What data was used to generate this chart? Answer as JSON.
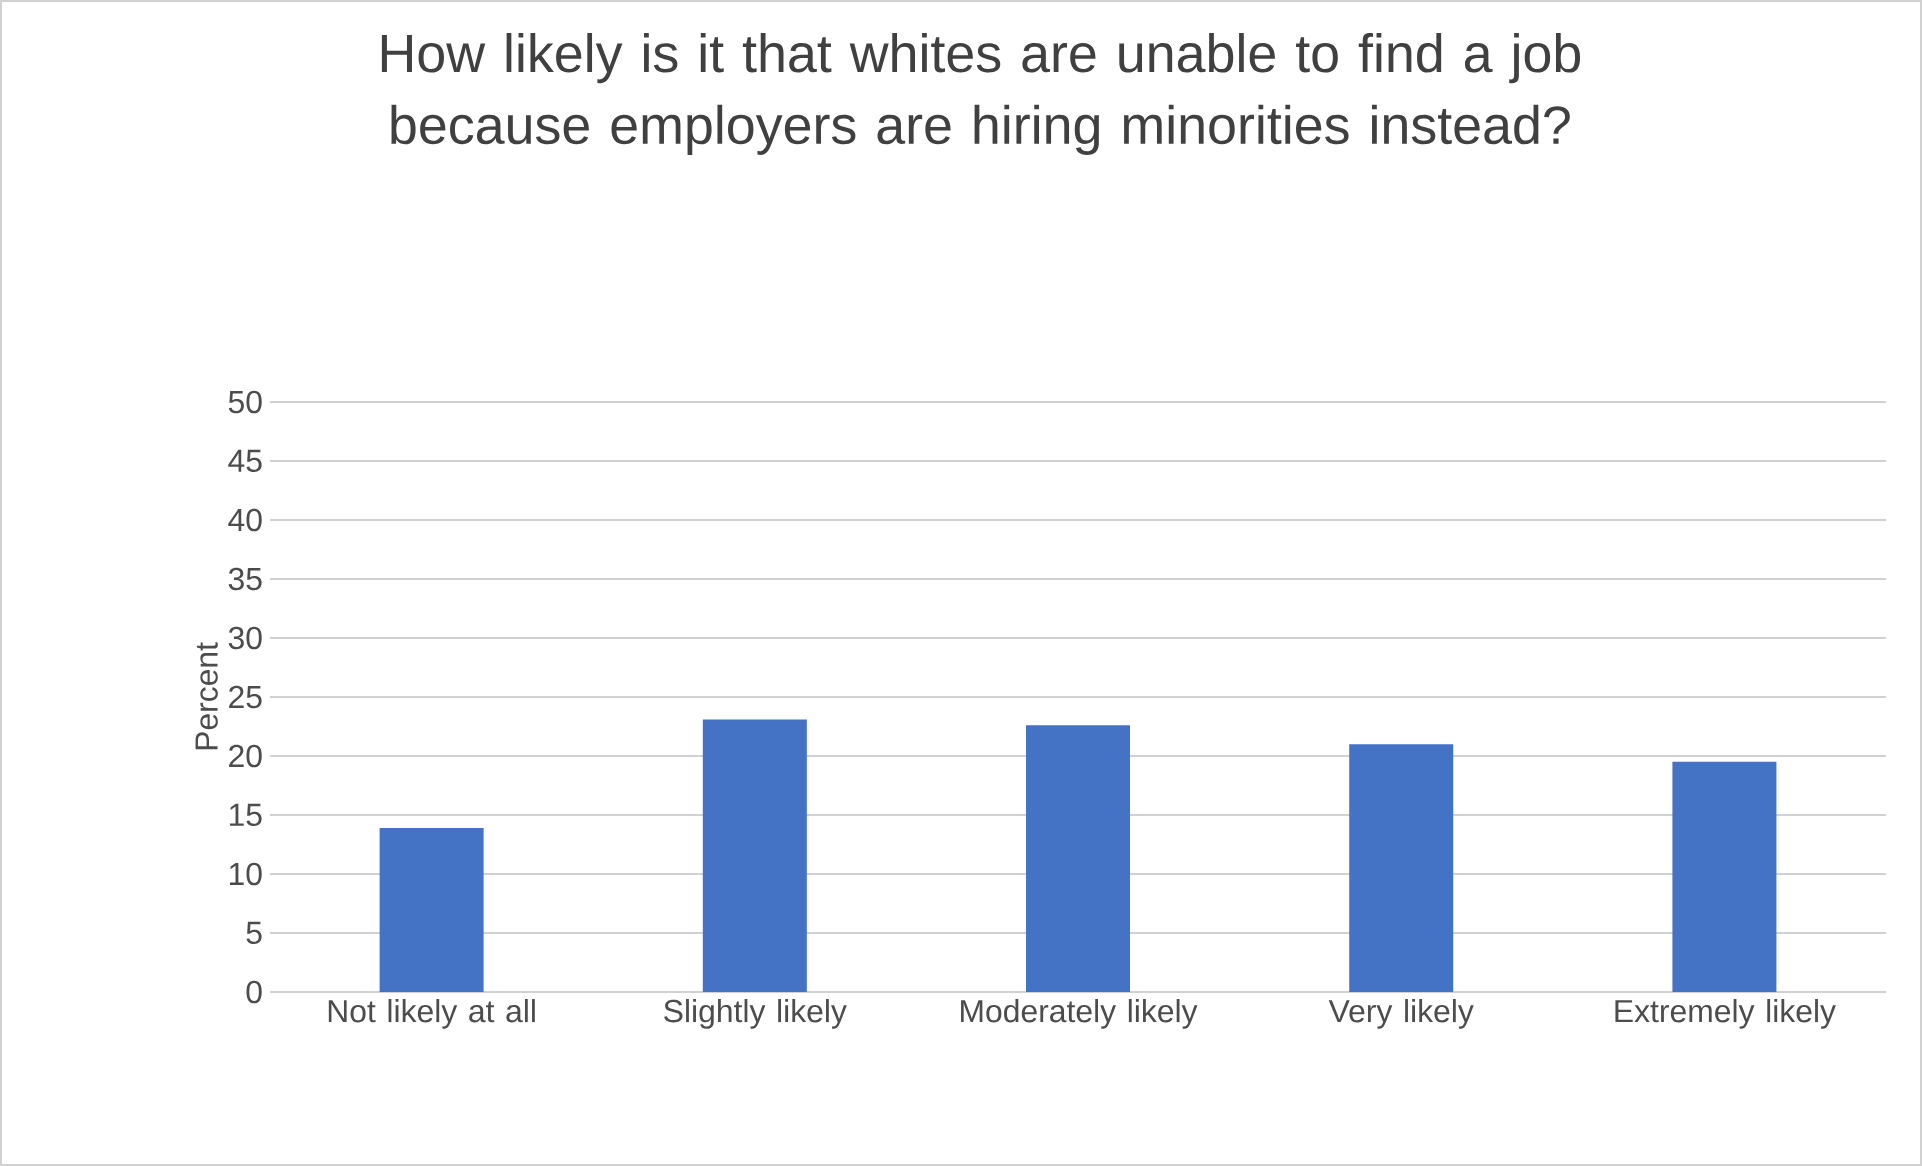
{
  "chart_data": {
    "type": "bar",
    "title": "How likely is it that whites are unable to find a job because employers are hiring minorities instead?",
    "ylabel": "Percent",
    "categories": [
      "Not likely at all",
      "Slightly likely",
      "Moderately likely",
      "Very likely",
      "Extremely likely"
    ],
    "values": [
      13.9,
      23.1,
      22.6,
      21.0,
      19.5
    ],
    "color": "#4472c4",
    "ylim": [
      0,
      50
    ],
    "yticks": [
      0,
      5,
      10,
      15,
      20,
      25,
      30,
      35,
      40,
      45,
      50
    ],
    "grid": "y"
  }
}
